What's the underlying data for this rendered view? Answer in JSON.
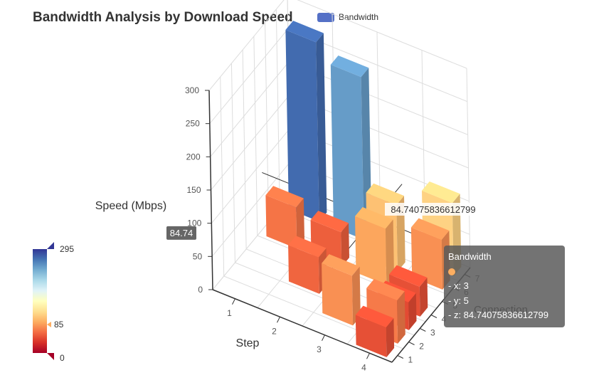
{
  "title": "Bandwidth Analysis by Download Speed",
  "legend": {
    "label": "Bandwidth",
    "color": "#5470c6"
  },
  "chart_data": {
    "type": "bar3d",
    "series": [
      {
        "name": "Bandwidth"
      }
    ],
    "x_axis": {
      "label": "Step",
      "ticks": [
        "1",
        "2",
        "3",
        "4"
      ]
    },
    "y_axis": {
      "label": "Connection",
      "ticks": [
        "1",
        "2",
        "3",
        "4",
        "5",
        "6",
        "7"
      ]
    },
    "z_axis": {
      "label": "Speed (Mbps)",
      "ticks": [
        "0",
        "50",
        "100",
        "150",
        "200",
        "250",
        "300"
      ],
      "range": [
        0,
        300
      ]
    },
    "points": [
      {
        "x": 1,
        "y": 7,
        "z": 270
      },
      {
        "x": 2,
        "y": 7,
        "z": 245
      },
      {
        "x": 1,
        "y": 5,
        "z": 62
      },
      {
        "x": 2,
        "y": 5,
        "z": 52
      },
      {
        "x": 3,
        "y": 6,
        "z": 100
      },
      {
        "x": 3,
        "y": 5,
        "z": 84.74075836612799
      },
      {
        "x": 4,
        "y": 6,
        "z": 75
      },
      {
        "x": 4,
        "y": 7,
        "z": 110
      },
      {
        "x": 2,
        "y": 3,
        "z": 55
      },
      {
        "x": 3,
        "y": 2,
        "z": 75
      },
      {
        "x": 4,
        "y": 4,
        "z": 45
      },
      {
        "x": 4,
        "y": 3,
        "z": 42
      },
      {
        "x": 4,
        "y": 1,
        "z": 45
      },
      {
        "x": 4,
        "y": 2,
        "z": 65
      }
    ],
    "axis_pointer_label": "84.74",
    "hover_label": "84.74075836612799",
    "visual_map": {
      "min": 0,
      "max": 295,
      "handle_value": 85,
      "colors": [
        "#a50026",
        "#d73027",
        "#f46d43",
        "#fdae61",
        "#fee090",
        "#ffffbf",
        "#e0f3f8",
        "#abd9e9",
        "#74add1",
        "#4575b4",
        "#313695"
      ]
    },
    "grid": true
  },
  "tooltip": {
    "series": "Bandwidth",
    "dot_color": "#fdae61",
    "x": "- x: 3",
    "y": "- y: 5",
    "z": "- z: 84.74075836612799"
  },
  "visual_map_labels": {
    "max": "295",
    "handle": "85",
    "min": "0"
  }
}
